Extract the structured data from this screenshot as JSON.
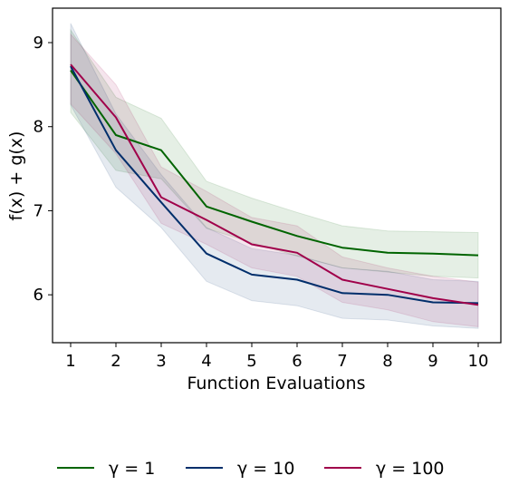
{
  "chart_data": {
    "type": "line",
    "xlabel": "Function Evaluations",
    "ylabel": "f(x) + g(x)",
    "x": [
      1,
      2,
      3,
      4,
      5,
      6,
      7,
      8,
      9,
      10
    ],
    "xlim": [
      0.6,
      10.5
    ],
    "ylim": [
      5.43,
      9.41
    ],
    "xticks": [
      1,
      2,
      3,
      4,
      5,
      6,
      7,
      8,
      9,
      10
    ],
    "yticks": [
      6,
      7,
      8,
      9
    ],
    "grid": false,
    "legend_position": "bottom",
    "series": [
      {
        "name": "γ = 1",
        "color": "#006400",
        "values": [
          8.67,
          7.9,
          7.72,
          7.05,
          6.87,
          6.7,
          6.56,
          6.5,
          6.49,
          6.47
        ],
        "band_upper": [
          9.15,
          8.35,
          8.1,
          7.35,
          7.15,
          6.98,
          6.82,
          6.76,
          6.75,
          6.74
        ],
        "band_lower": [
          8.17,
          7.48,
          7.38,
          6.79,
          6.62,
          6.46,
          6.32,
          6.27,
          6.22,
          6.2
        ]
      },
      {
        "name": "γ = 10",
        "color": "#002e6b",
        "values": [
          8.72,
          7.72,
          7.1,
          6.49,
          6.24,
          6.18,
          6.02,
          6.0,
          5.91,
          5.9
        ],
        "band_upper": [
          9.23,
          8.15,
          7.43,
          6.8,
          6.55,
          6.47,
          6.32,
          6.28,
          6.18,
          6.16
        ],
        "band_lower": [
          8.26,
          7.28,
          6.8,
          6.16,
          5.93,
          5.87,
          5.72,
          5.7,
          5.63,
          5.6
        ]
      },
      {
        "name": "γ = 100",
        "color": "#a0004a",
        "values": [
          8.74,
          8.11,
          7.16,
          6.89,
          6.6,
          6.5,
          6.18,
          6.07,
          5.96,
          5.88
        ],
        "band_upper": [
          9.1,
          8.5,
          7.52,
          7.23,
          6.92,
          6.82,
          6.45,
          6.32,
          6.22,
          6.15
        ],
        "band_lower": [
          8.27,
          7.68,
          6.85,
          6.6,
          6.32,
          6.22,
          5.91,
          5.82,
          5.68,
          5.62
        ]
      }
    ]
  }
}
